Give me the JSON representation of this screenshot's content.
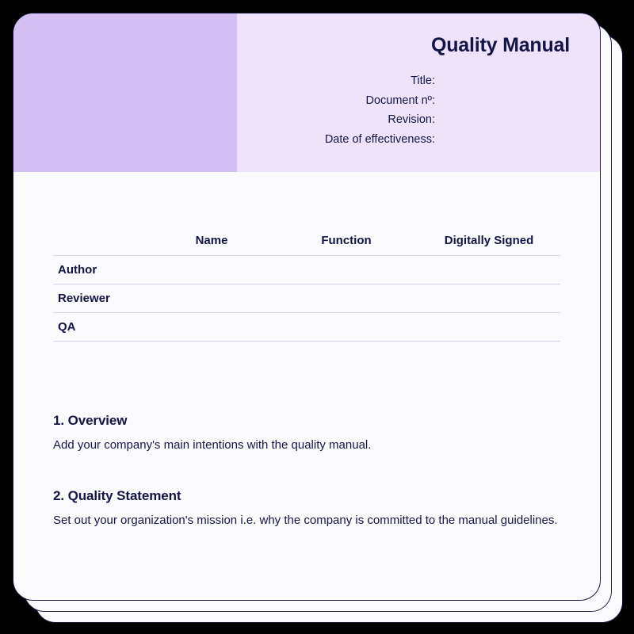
{
  "colors": {
    "text": "#141547",
    "header_left_bg": "#d4c0f2",
    "header_right_bg": "#eee3fb",
    "page_bg": "#fbfafc",
    "rule": "#d9d2e8"
  },
  "header": {
    "title": "Quality Manual",
    "meta": [
      {
        "label": "Title:"
      },
      {
        "label": "Document nº:"
      },
      {
        "label": "Revision:"
      },
      {
        "label": "Date of effectiveness:"
      }
    ]
  },
  "signoff_table": {
    "columns": [
      "",
      "Name",
      "Function",
      "Digitally Signed"
    ],
    "rows": [
      {
        "role": "Author"
      },
      {
        "role": "Reviewer"
      },
      {
        "role": "QA"
      }
    ]
  },
  "sections": [
    {
      "heading": "1. Overview",
      "body": "Add your company's main intentions with the quality manual."
    },
    {
      "heading": "2. Quality Statement",
      "body": "Set out your organization's mission i.e. why the company is committed to the manual guidelines."
    }
  ]
}
